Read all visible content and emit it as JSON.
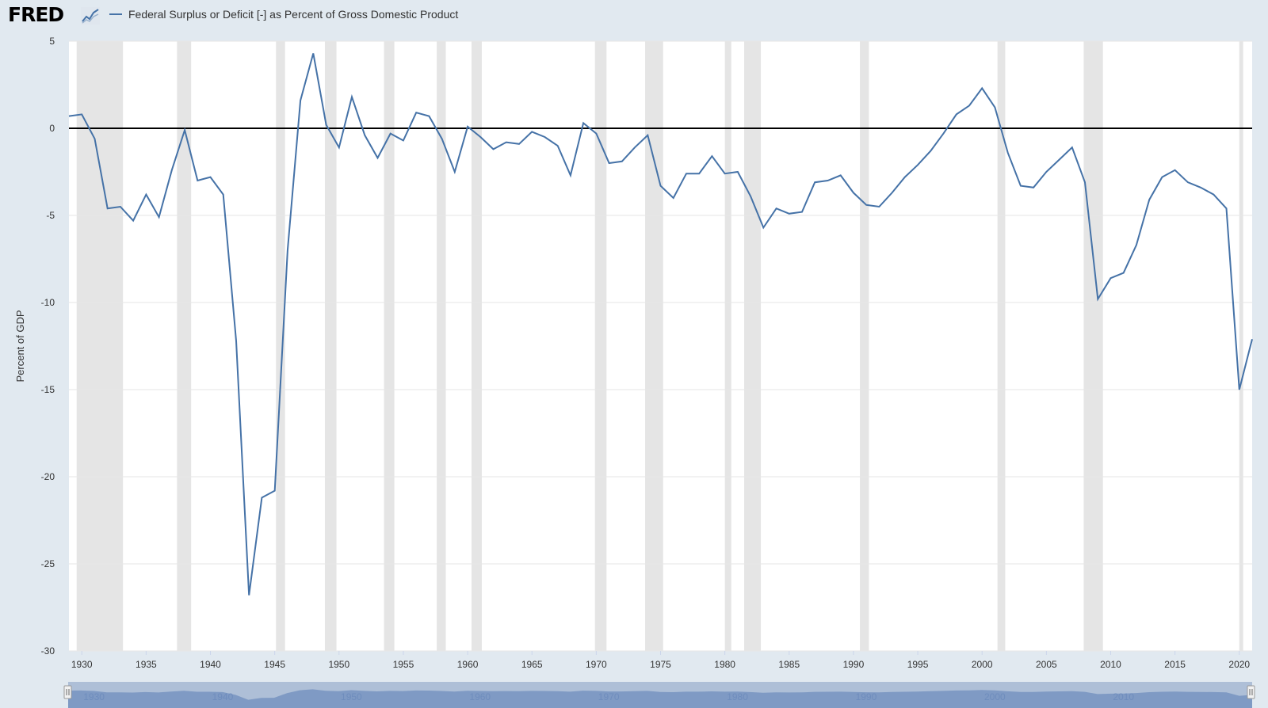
{
  "header": {
    "logo_text": "FRED",
    "logo_icon": "line-chart-icon",
    "legend_label": "Federal Surplus or Deficit [-] as Percent of Gross Domestic Product",
    "series_color": "#4572a7"
  },
  "chart_data": {
    "type": "line",
    "title": "",
    "xlabel": "",
    "ylabel": "Percent of GDP",
    "xlim": [
      1929,
      2021
    ],
    "ylim": [
      -30,
      5
    ],
    "y_ticks": [
      5,
      0,
      -5,
      -10,
      -15,
      -20,
      -25,
      -30
    ],
    "x_ticks": [
      1930,
      1935,
      1940,
      1945,
      1950,
      1955,
      1960,
      1965,
      1970,
      1975,
      1980,
      1985,
      1990,
      1995,
      2000,
      2005,
      2010,
      2015,
      2020
    ],
    "grid": true,
    "legend": "top-left",
    "reference_line": 0,
    "recessions": [
      [
        1929.6,
        1933.2
      ],
      [
        1937.4,
        1938.5
      ],
      [
        1945.1,
        1945.8
      ],
      [
        1948.9,
        1949.8
      ],
      [
        1953.5,
        1954.3
      ],
      [
        1957.6,
        1958.3
      ],
      [
        1960.3,
        1961.1
      ],
      [
        1969.9,
        1970.8
      ],
      [
        1973.8,
        1975.2
      ],
      [
        1980.0,
        1980.5
      ],
      [
        1981.5,
        1982.8
      ],
      [
        1990.5,
        1991.2
      ],
      [
        2001.2,
        2001.8
      ],
      [
        2007.9,
        2009.4
      ],
      [
        2020.0,
        2020.3
      ]
    ],
    "series": [
      {
        "name": "Federal Surplus or Deficit [-] as Percent of Gross Domestic Product",
        "color": "#4572a7",
        "x": [
          1929,
          1930,
          1931,
          1932,
          1933,
          1934,
          1935,
          1936,
          1937,
          1938,
          1939,
          1940,
          1941,
          1942,
          1943,
          1944,
          1945,
          1946,
          1947,
          1948,
          1949,
          1950,
          1951,
          1952,
          1953,
          1954,
          1955,
          1956,
          1957,
          1958,
          1959,
          1960,
          1961,
          1962,
          1963,
          1964,
          1965,
          1966,
          1967,
          1968,
          1969,
          1970,
          1971,
          1972,
          1973,
          1974,
          1975,
          1976,
          1977,
          1978,
          1979,
          1980,
          1981,
          1982,
          1983,
          1984,
          1985,
          1986,
          1987,
          1988,
          1989,
          1990,
          1991,
          1992,
          1993,
          1994,
          1995,
          1996,
          1997,
          1998,
          1999,
          2000,
          2001,
          2002,
          2003,
          2004,
          2005,
          2006,
          2007,
          2008,
          2009,
          2010,
          2011,
          2012,
          2013,
          2014,
          2015,
          2016,
          2017,
          2018,
          2019,
          2020,
          2021
        ],
        "values": [
          0.7,
          0.8,
          -0.6,
          -4.6,
          -4.5,
          -5.3,
          -3.8,
          -5.1,
          -2.4,
          -0.1,
          -3.0,
          -2.8,
          -3.8,
          -12.2,
          -26.8,
          -21.2,
          -20.8,
          -7.0,
          1.6,
          4.3,
          0.2,
          -1.1,
          1.8,
          -0.4,
          -1.7,
          -0.3,
          -0.7,
          0.9,
          0.7,
          -0.6,
          -2.5,
          0.1,
          -0.5,
          -1.2,
          -0.8,
          -0.9,
          -0.2,
          -0.5,
          -1.0,
          -2.7,
          0.3,
          -0.3,
          -2.0,
          -1.9,
          -1.1,
          -0.4,
          -3.3,
          -4.0,
          -2.6,
          -2.6,
          -1.6,
          -2.6,
          -2.5,
          -3.9,
          -5.7,
          -4.6,
          -4.9,
          -4.8,
          -3.1,
          -3.0,
          -2.7,
          -3.7,
          -4.4,
          -4.5,
          -3.7,
          -2.8,
          -2.1,
          -1.3,
          -0.3,
          0.8,
          1.3,
          2.3,
          1.2,
          -1.4,
          -3.3,
          -3.4,
          -2.5,
          -1.8,
          -1.1,
          -3.1,
          -9.8,
          -8.6,
          -8.3,
          -6.7,
          -4.1,
          -2.8,
          -2.4,
          -3.1,
          -3.4,
          -3.8,
          -4.6,
          -15.0,
          -12.1
        ]
      }
    ]
  },
  "navigator": {
    "labels": [
      "1930",
      "1940",
      "1950",
      "1960",
      "1970",
      "1980",
      "1990",
      "2000",
      "2010"
    ],
    "handle_left": "handle-grip-icon",
    "handle_right": "handle-grip-icon"
  }
}
